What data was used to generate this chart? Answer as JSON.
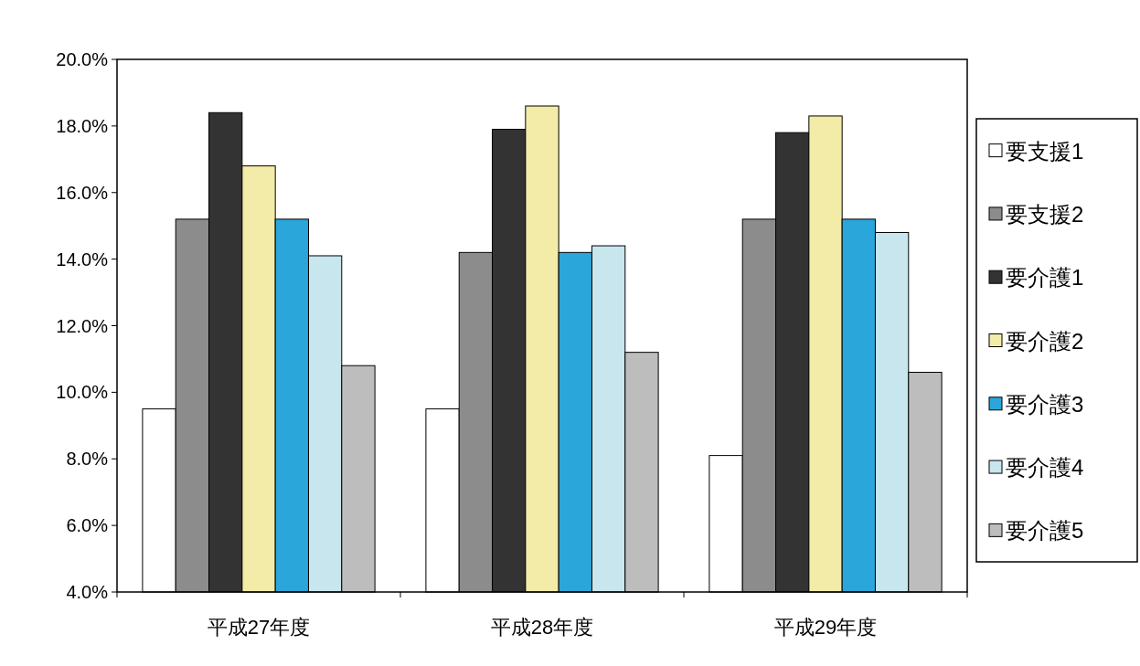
{
  "chart_data": {
    "type": "bar",
    "categories": [
      "平成27年度",
      "平成28年度",
      "平成29年度"
    ],
    "series": [
      {
        "name": "要支援1",
        "color": "#ffffff",
        "values": [
          9.5,
          9.5,
          8.1
        ]
      },
      {
        "name": "要支援2",
        "color": "#8c8c8c",
        "values": [
          15.2,
          14.2,
          15.2
        ]
      },
      {
        "name": "要介護1",
        "color": "#333333",
        "values": [
          18.4,
          17.9,
          17.8
        ]
      },
      {
        "name": "要介護2",
        "color": "#f3eba8",
        "values": [
          16.8,
          18.6,
          18.3
        ]
      },
      {
        "name": "要介護3",
        "color": "#2aa6da",
        "values": [
          15.2,
          14.2,
          15.2
        ]
      },
      {
        "name": "要介護4",
        "color": "#c8e6ee",
        "values": [
          14.1,
          14.4,
          14.8
        ]
      },
      {
        "name": "要介護5",
        "color": "#bdbdbd",
        "values": [
          10.8,
          11.2,
          10.6
        ]
      }
    ],
    "ylim": [
      4,
      20
    ],
    "yticks": [
      {
        "value": 4,
        "label": "4.0%"
      },
      {
        "value": 6,
        "label": "6.0%"
      },
      {
        "value": 8,
        "label": "8.0%"
      },
      {
        "value": 10,
        "label": "10.0%"
      },
      {
        "value": 12,
        "label": "12.0%"
      },
      {
        "value": 14,
        "label": "14.0%"
      },
      {
        "value": 16,
        "label": "16.0%"
      },
      {
        "value": 18,
        "label": "18.0%"
      },
      {
        "value": 20,
        "label": "20.0%"
      }
    ],
    "grid": false,
    "legend": "right"
  }
}
